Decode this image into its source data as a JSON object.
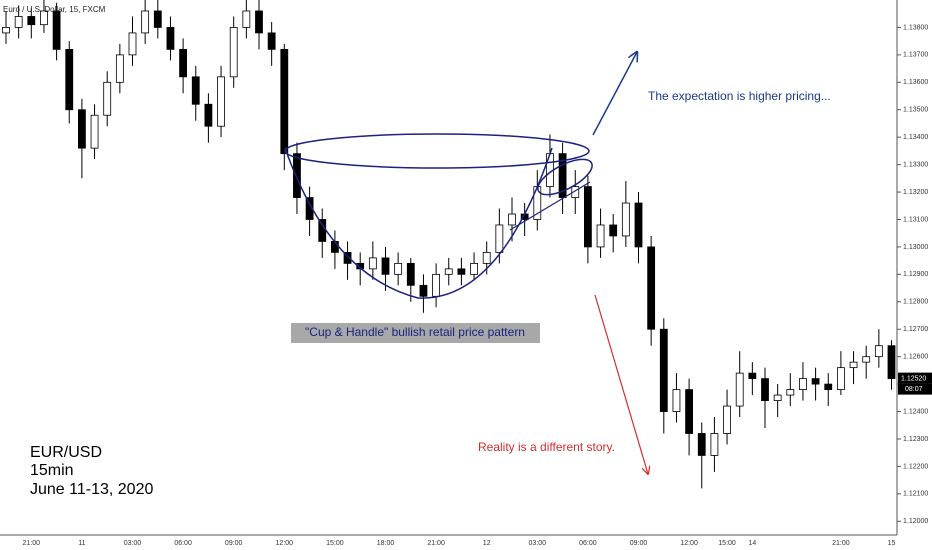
{
  "chart_data": {
    "type": "candlestick",
    "title": "Euro / U.S. Dollar, 15, FXCM",
    "up_color": "#ffffff",
    "down_color": "#000000",
    "wick_color": "#000000",
    "ylim": [
      1.1195,
      1.139
    ],
    "yticks": [
      {
        "value": 1.12,
        "label": "1.12000"
      },
      {
        "value": 1.121,
        "label": "1.12100"
      },
      {
        "value": 1.122,
        "label": "1.12200"
      },
      {
        "value": 1.123,
        "label": "1.12300"
      },
      {
        "value": 1.124,
        "label": "1.12400"
      },
      {
        "value": 1.125,
        "label": "1.12500"
      },
      {
        "value": 1.126,
        "label": "1.12600"
      },
      {
        "value": 1.127,
        "label": "1.12700"
      },
      {
        "value": 1.128,
        "label": "1.12800"
      },
      {
        "value": 1.129,
        "label": "1.12900"
      },
      {
        "value": 1.13,
        "label": "1.13000"
      },
      {
        "value": 1.131,
        "label": "1.13100"
      },
      {
        "value": 1.132,
        "label": "1.13200"
      },
      {
        "value": 1.133,
        "label": "1.13300"
      },
      {
        "value": 1.134,
        "label": "1.13400"
      },
      {
        "value": 1.135,
        "label": "1.13500"
      },
      {
        "value": 1.136,
        "label": "1.13600"
      },
      {
        "value": 1.137,
        "label": "1.13700"
      },
      {
        "value": 1.138,
        "label": "1.13800"
      }
    ],
    "last_price": {
      "value": 1.1252,
      "label": "1.12520"
    },
    "countdown": "08:07",
    "categories": [
      null,
      null,
      "21:00",
      null,
      null,
      null,
      "11",
      null,
      null,
      null,
      "03:00",
      null,
      null,
      null,
      "06:00",
      null,
      null,
      null,
      "09:00",
      null,
      null,
      null,
      "12:00",
      null,
      null,
      null,
      "15:00",
      null,
      null,
      null,
      "18:00",
      null,
      null,
      null,
      "21:00",
      null,
      null,
      null,
      "12",
      null,
      null,
      null,
      "03:00",
      null,
      null,
      null,
      "06:00",
      null,
      null,
      null,
      "09:00",
      null,
      null,
      null,
      "12:00",
      null,
      null,
      "15:00",
      null,
      "14",
      null,
      null,
      null,
      null,
      null,
      null,
      "21:00",
      null,
      null,
      null,
      "15"
    ],
    "ohlc": [
      [
        1.1378,
        1.1386,
        1.1374,
        1.138
      ],
      [
        1.138,
        1.1388,
        1.1376,
        1.1384
      ],
      [
        1.1384,
        1.1387,
        1.1376,
        1.1381
      ],
      [
        1.1381,
        1.1392,
        1.1378,
        1.1386
      ],
      [
        1.1386,
        1.1389,
        1.1368,
        1.1372
      ],
      [
        1.1372,
        1.1375,
        1.1345,
        1.135
      ],
      [
        1.135,
        1.1354,
        1.1325,
        1.1336
      ],
      [
        1.1336,
        1.1352,
        1.1332,
        1.1348
      ],
      [
        1.1348,
        1.1364,
        1.1344,
        1.136
      ],
      [
        1.136,
        1.1374,
        1.1356,
        1.137
      ],
      [
        1.137,
        1.1384,
        1.1366,
        1.1378
      ],
      [
        1.1378,
        1.1394,
        1.1374,
        1.1386
      ],
      [
        1.1386,
        1.1392,
        1.1376,
        1.138
      ],
      [
        1.138,
        1.1384,
        1.1368,
        1.1372
      ],
      [
        1.1372,
        1.1376,
        1.1356,
        1.1362
      ],
      [
        1.1362,
        1.1366,
        1.1346,
        1.1352
      ],
      [
        1.1352,
        1.1356,
        1.1338,
        1.1344
      ],
      [
        1.1344,
        1.1366,
        1.134,
        1.1362
      ],
      [
        1.1362,
        1.1384,
        1.1358,
        1.138
      ],
      [
        1.138,
        1.1394,
        1.1376,
        1.1386
      ],
      [
        1.1386,
        1.139,
        1.1372,
        1.1378
      ],
      [
        1.1378,
        1.1382,
        1.1366,
        1.1372
      ],
      [
        1.1372,
        1.1374,
        1.1328,
        1.1334
      ],
      [
        1.1334,
        1.1338,
        1.1312,
        1.1318
      ],
      [
        1.1318,
        1.1322,
        1.1304,
        1.131
      ],
      [
        1.131,
        1.1314,
        1.1296,
        1.1302
      ],
      [
        1.1302,
        1.1306,
        1.1292,
        1.1298
      ],
      [
        1.1298,
        1.1302,
        1.1288,
        1.1294
      ],
      [
        1.1294,
        1.1298,
        1.1286,
        1.1292
      ],
      [
        1.1292,
        1.1302,
        1.1288,
        1.1296
      ],
      [
        1.1296,
        1.13,
        1.1284,
        1.129
      ],
      [
        1.129,
        1.1298,
        1.1286,
        1.1294
      ],
      [
        1.1294,
        1.1296,
        1.128,
        1.1286
      ],
      [
        1.1286,
        1.129,
        1.1276,
        1.1282
      ],
      [
        1.1282,
        1.1294,
        1.1278,
        1.129
      ],
      [
        1.129,
        1.1296,
        1.1286,
        1.1292
      ],
      [
        1.1292,
        1.1296,
        1.1286,
        1.129
      ],
      [
        1.129,
        1.1298,
        1.1288,
        1.1294
      ],
      [
        1.1294,
        1.1302,
        1.129,
        1.1298
      ],
      [
        1.1298,
        1.1314,
        1.1294,
        1.1308
      ],
      [
        1.1308,
        1.1318,
        1.1302,
        1.1312
      ],
      [
        1.1312,
        1.1316,
        1.1304,
        1.131
      ],
      [
        1.131,
        1.1328,
        1.1306,
        1.1322
      ],
      [
        1.1322,
        1.1341,
        1.1318,
        1.1334
      ],
      [
        1.1334,
        1.1338,
        1.1312,
        1.1318
      ],
      [
        1.1318,
        1.1328,
        1.1312,
        1.1322
      ],
      [
        1.1322,
        1.1326,
        1.1294,
        1.13
      ],
      [
        1.13,
        1.1314,
        1.1296,
        1.1308
      ],
      [
        1.1308,
        1.1312,
        1.1298,
        1.1304
      ],
      [
        1.1304,
        1.1324,
        1.13,
        1.1316
      ],
      [
        1.1316,
        1.132,
        1.1294,
        1.13
      ],
      [
        1.13,
        1.1304,
        1.1264,
        1.127
      ],
      [
        1.127,
        1.1274,
        1.1232,
        1.124
      ],
      [
        1.124,
        1.1254,
        1.1236,
        1.1248
      ],
      [
        1.1248,
        1.1252,
        1.1224,
        1.1232
      ],
      [
        1.1232,
        1.1236,
        1.1212,
        1.1224
      ],
      [
        1.1224,
        1.1238,
        1.1218,
        1.1232
      ],
      [
        1.1232,
        1.1248,
        1.1228,
        1.1242
      ],
      [
        1.1242,
        1.1262,
        1.1238,
        1.1254
      ],
      [
        1.1254,
        1.1258,
        1.1246,
        1.1252
      ],
      [
        1.1252,
        1.1256,
        1.1234,
        1.1244
      ],
      [
        1.1244,
        1.125,
        1.1238,
        1.1246
      ],
      [
        1.1246,
        1.1254,
        1.1242,
        1.1248
      ],
      [
        1.1248,
        1.1258,
        1.1244,
        1.1252
      ],
      [
        1.1252,
        1.1256,
        1.1244,
        1.125
      ],
      [
        1.125,
        1.1254,
        1.1242,
        1.1248
      ],
      [
        1.1248,
        1.1262,
        1.1246,
        1.1256
      ],
      [
        1.1256,
        1.1262,
        1.125,
        1.1258
      ],
      [
        1.1258,
        1.1264,
        1.1252,
        1.126
      ],
      [
        1.126,
        1.127,
        1.1256,
        1.1264
      ],
      [
        1.1264,
        1.1266,
        1.1248,
        1.1252
      ]
    ],
    "annotations": {
      "expectation": "The expectation is higher pricing...",
      "pattern": "\"Cup & Handle\" bullish retail price pattern",
      "reality": "Reality is a different story.",
      "pair": "EUR/USD",
      "timeframe": "15min",
      "dates": "June 11-13, 2020"
    }
  }
}
